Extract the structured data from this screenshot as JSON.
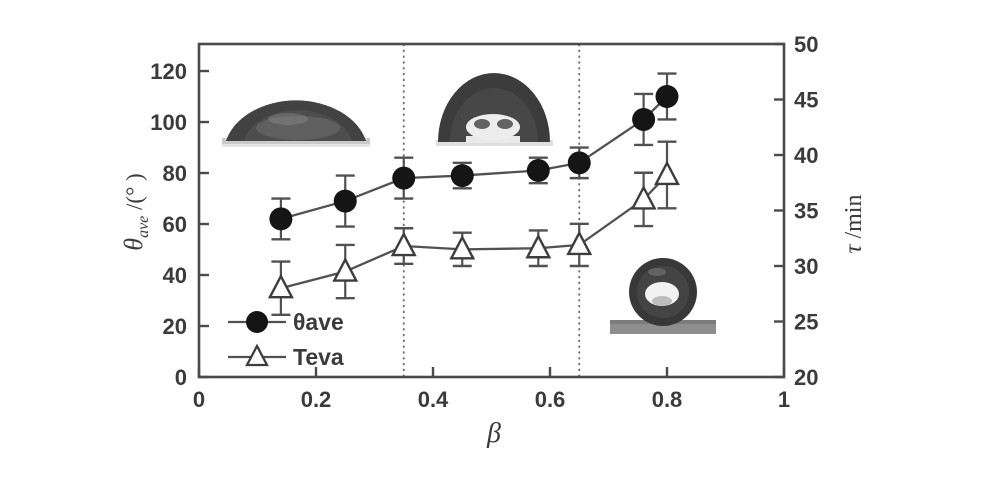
{
  "figure": {
    "background": "#ffffff",
    "text_color": "#3b3b3b",
    "axis_color": "#4a4a4a",
    "series_line_color": "#515151",
    "marker_fill_color": "#151515",
    "marker_edge_color": "#3d3d3d",
    "dotted_line_color": "#6f6f6f"
  },
  "chart_data": {
    "type": "line",
    "title": "",
    "xlabel": "β",
    "ylabel_left": {
      "symbol": "θ",
      "subscript": "ave",
      "unit": " /(° )"
    },
    "ylabel_right": {
      "symbol": "τ",
      "unit": " /min"
    },
    "xlim": [
      0,
      1
    ],
    "ylim_left": [
      0,
      130.6
    ],
    "ylim_right": [
      20,
      50
    ],
    "grid": "off",
    "x_ticks": [
      {
        "v": 0,
        "label": "0"
      },
      {
        "v": 0.2,
        "label": "0.2"
      },
      {
        "v": 0.4,
        "label": "0.4"
      },
      {
        "v": 0.6,
        "label": "0.6"
      },
      {
        "v": 0.8,
        "label": "0.8"
      },
      {
        "v": 1,
        "label": "1"
      }
    ],
    "left_ticks": [
      {
        "v": 0,
        "label": "0"
      },
      {
        "v": 20,
        "label": "20"
      },
      {
        "v": 40,
        "label": "40"
      },
      {
        "v": 60,
        "label": "60"
      },
      {
        "v": 80,
        "label": "80"
      },
      {
        "v": 100,
        "label": "100"
      },
      {
        "v": 120,
        "label": "120"
      }
    ],
    "right_ticks": [
      {
        "v": 20,
        "label": "20"
      },
      {
        "v": 25,
        "label": "25"
      },
      {
        "v": 30,
        "label": "30"
      },
      {
        "v": 35,
        "label": "35"
      },
      {
        "v": 40,
        "label": "40"
      },
      {
        "v": 45,
        "label": "45"
      },
      {
        "v": 50,
        "label": "50"
      }
    ],
    "dotted_guide_lines_x": [
      0.35,
      0.65
    ],
    "series": [
      {
        "name": "θave",
        "axis": "left",
        "marker": "filled-circle",
        "x": [
          0.14,
          0.25,
          0.35,
          0.45,
          0.58,
          0.65,
          0.76,
          0.8
        ],
        "y": [
          62,
          69,
          78,
          79,
          81,
          84,
          101,
          110
        ],
        "y_err": [
          8,
          10,
          8,
          5,
          5,
          6,
          10,
          9
        ]
      },
      {
        "name": "Teva",
        "axis": "right",
        "marker": "open-triangle",
        "x": [
          0.14,
          0.25,
          0.35,
          0.45,
          0.58,
          0.65,
          0.76,
          0.8
        ],
        "y": [
          28.0,
          29.5,
          31.8,
          31.5,
          31.6,
          31.9,
          36.0,
          38.2
        ],
        "y_err": [
          2.4,
          2.4,
          1.6,
          1.5,
          1.6,
          1.9,
          2.4,
          3.0
        ]
      }
    ],
    "legend": {
      "position": "lower-left",
      "items": [
        {
          "label": "θave",
          "marker": "filled-circle"
        },
        {
          "label": "Teva",
          "marker": "open-triangle"
        }
      ]
    },
    "insets": [
      {
        "name": "sessile-drop-photo-low-contact-angle",
        "position": "upper-left"
      },
      {
        "name": "sessile-drop-photo-medium-contact-angle",
        "position": "upper-middle"
      },
      {
        "name": "sessile-drop-photo-high-contact-angle",
        "position": "lower-right"
      }
    ]
  }
}
